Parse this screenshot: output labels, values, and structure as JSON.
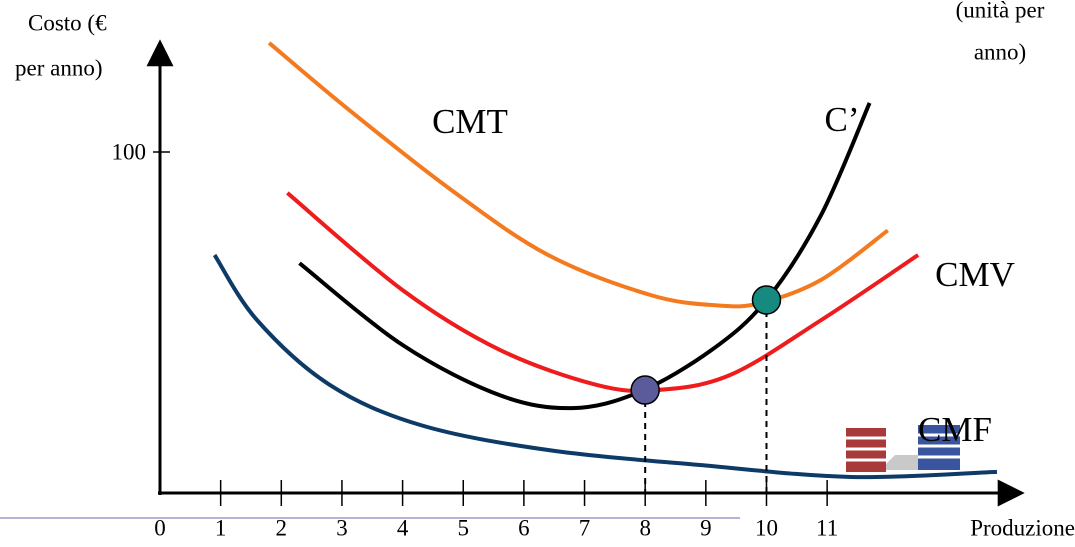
{
  "chart_data": {
    "type": "line",
    "y_label_lines": [
      "Costo (€",
      "per anno)"
    ],
    "unit_label_lines": [
      "(unità per",
      "anno)"
    ],
    "x_label": "Produzione",
    "xlim": [
      0,
      14.18
    ],
    "ylim": [
      0,
      133
    ],
    "xticks": [
      0,
      1,
      2,
      3,
      4,
      5,
      6,
      7,
      8,
      9,
      10,
      11
    ],
    "yticks": [
      100
    ],
    "series": [
      {
        "name": "CMT",
        "color": "#f47a20",
        "x": [
          1.8,
          3.1,
          4.8,
          6.4,
          8.1,
          9.2,
          9.9,
          10.9,
          12.0
        ],
        "values": [
          132,
          112.6,
          88.9,
          69.8,
          58,
          55,
          55.7,
          62.5,
          77
        ]
      },
      {
        "name": "C’",
        "color": "#000000",
        "x": [
          2.3,
          4.0,
          5.6,
          6.8,
          7.9,
          9.1,
          10.0,
          10.9,
          11.7
        ],
        "values": [
          67.4,
          43.4,
          28.7,
          24.9,
          29.6,
          42,
          56.6,
          81.5,
          114.4
        ]
      },
      {
        "name": "CMV",
        "color": "#ee1c1c",
        "x": [
          2.1,
          4.0,
          5.6,
          7.2,
          8.2,
          9.4,
          10.9,
          12.5
        ],
        "values": [
          88,
          59.5,
          42,
          31.7,
          30.2,
          34.6,
          50.7,
          69.8
        ]
      },
      {
        "name": "CMF",
        "color": "#0d3a66",
        "x": [
          0.9,
          1.6,
          2.8,
          4.3,
          6.4,
          8.9,
          11.4,
          13.8
        ],
        "values": [
          69.8,
          50.7,
          31.7,
          19.9,
          12.6,
          8.2,
          4.7,
          6.2
        ]
      }
    ],
    "markers": [
      {
        "x": 8,
        "y": 30.2,
        "color": "#5b5b9b"
      },
      {
        "x": 10,
        "y": 56.6,
        "color": "#168a7e"
      }
    ]
  }
}
